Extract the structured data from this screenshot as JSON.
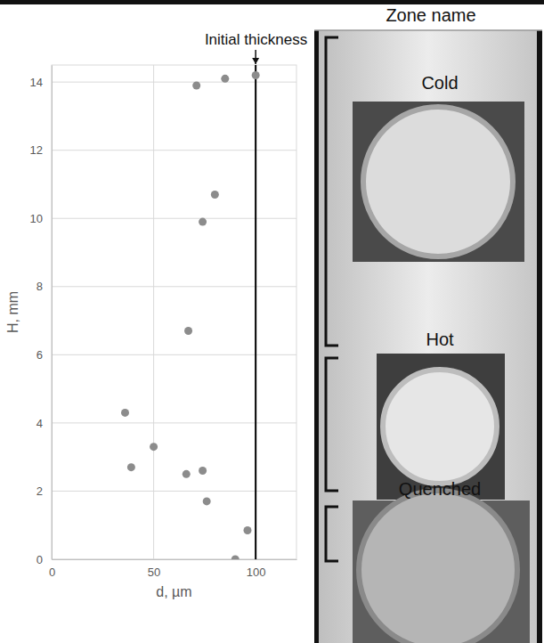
{
  "chart_data": {
    "type": "scatter",
    "x_label": "d, µm",
    "y_label": "H, mm",
    "x": [
      71,
      85,
      100,
      80,
      74,
      67,
      36,
      50,
      39,
      66,
      74,
      76,
      96,
      90
    ],
    "values": [
      13.9,
      14.1,
      14.2,
      10.7,
      9.9,
      6.7,
      4.3,
      3.3,
      2.7,
      2.5,
      2.6,
      1.7,
      0.85,
      0
    ],
    "color": "#8c8c8c",
    "marker": "circle",
    "xlim": [
      0,
      120
    ],
    "xticks": [
      0,
      50,
      100
    ],
    "ylim": [
      0,
      14.5
    ],
    "yticks": [
      0,
      2,
      4,
      6,
      8,
      10,
      12,
      14
    ],
    "grid": true,
    "reference_line": {
      "x": 100,
      "label": "Initial thickness"
    }
  },
  "zone_panel": {
    "title": "Zone name",
    "zones": [
      "Cold",
      "Hot",
      "Quenched"
    ]
  }
}
